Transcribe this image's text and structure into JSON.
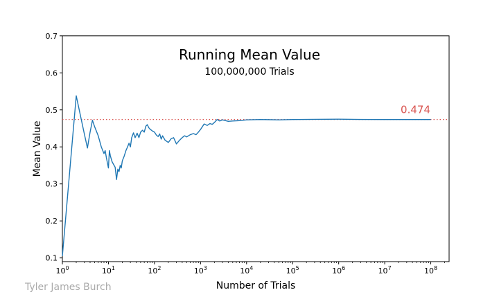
{
  "chart_data": {
    "type": "line",
    "title": "Running Mean Value",
    "subtitle": "100,000,000 Trials",
    "xlabel": "Number of Trials",
    "ylabel": "Mean Value",
    "x_scale": "log",
    "xlim": [
      1,
      250000000
    ],
    "ylim": [
      0.09,
      0.7
    ],
    "y_ticks": [
      {
        "value": 0.1,
        "label": "0.1"
      },
      {
        "value": 0.2,
        "label": "0.2"
      },
      {
        "value": 0.3,
        "label": "0.3"
      },
      {
        "value": 0.4,
        "label": "0.4"
      },
      {
        "value": 0.5,
        "label": "0.5"
      },
      {
        "value": 0.6,
        "label": "0.6"
      },
      {
        "value": 0.7,
        "label": "0.7"
      }
    ],
    "x_ticks": [
      {
        "value": 1,
        "base": "10",
        "exp": "0"
      },
      {
        "value": 10,
        "base": "10",
        "exp": "1"
      },
      {
        "value": 100,
        "base": "10",
        "exp": "2"
      },
      {
        "value": 1000,
        "base": "10",
        "exp": "3"
      },
      {
        "value": 10000,
        "base": "10",
        "exp": "4"
      },
      {
        "value": 100000,
        "base": "10",
        "exp": "5"
      },
      {
        "value": 1000000,
        "base": "10",
        "exp": "6"
      },
      {
        "value": 10000000,
        "base": "10",
        "exp": "7"
      },
      {
        "value": 100000000,
        "base": "10",
        "exp": "8"
      }
    ],
    "reference_line": {
      "value": 0.474,
      "label": "0.474",
      "color": "#d9534f",
      "style": "dotted"
    },
    "series": [
      {
        "color": "#1f77b4",
        "points": [
          [
            1,
            0.105
          ],
          [
            2,
            0.538
          ],
          [
            3,
            0.435
          ],
          [
            3.5,
            0.397
          ],
          [
            4,
            0.44
          ],
          [
            4.5,
            0.472
          ],
          [
            5,
            0.455
          ],
          [
            6,
            0.43
          ],
          [
            7,
            0.4
          ],
          [
            8,
            0.382
          ],
          [
            8.5,
            0.39
          ],
          [
            9,
            0.372
          ],
          [
            10,
            0.343
          ],
          [
            10.5,
            0.39
          ],
          [
            11,
            0.376
          ],
          [
            12,
            0.36
          ],
          [
            13,
            0.352
          ],
          [
            14,
            0.345
          ],
          [
            15,
            0.312
          ],
          [
            16,
            0.34
          ],
          [
            17,
            0.333
          ],
          [
            18,
            0.35
          ],
          [
            19,
            0.343
          ],
          [
            20,
            0.362
          ],
          [
            22,
            0.375
          ],
          [
            24,
            0.39
          ],
          [
            26,
            0.4
          ],
          [
            28,
            0.41
          ],
          [
            30,
            0.4
          ],
          [
            32,
            0.425
          ],
          [
            35,
            0.438
          ],
          [
            38,
            0.425
          ],
          [
            42,
            0.437
          ],
          [
            46,
            0.425
          ],
          [
            50,
            0.44
          ],
          [
            55,
            0.445
          ],
          [
            60,
            0.44
          ],
          [
            65,
            0.456
          ],
          [
            70,
            0.46
          ],
          [
            75,
            0.452
          ],
          [
            80,
            0.448
          ],
          [
            90,
            0.443
          ],
          [
            100,
            0.44
          ],
          [
            110,
            0.432
          ],
          [
            120,
            0.428
          ],
          [
            130,
            0.435
          ],
          [
            140,
            0.421
          ],
          [
            150,
            0.43
          ],
          [
            170,
            0.418
          ],
          [
            200,
            0.412
          ],
          [
            230,
            0.422
          ],
          [
            260,
            0.425
          ],
          [
            300,
            0.408
          ],
          [
            350,
            0.418
          ],
          [
            400,
            0.425
          ],
          [
            450,
            0.43
          ],
          [
            500,
            0.427
          ],
          [
            600,
            0.433
          ],
          [
            700,
            0.436
          ],
          [
            800,
            0.433
          ],
          [
            900,
            0.44
          ],
          [
            1000,
            0.447
          ],
          [
            1200,
            0.462
          ],
          [
            1400,
            0.458
          ],
          [
            1600,
            0.463
          ],
          [
            1800,
            0.461
          ],
          [
            2000,
            0.466
          ],
          [
            2300,
            0.474
          ],
          [
            2600,
            0.47
          ],
          [
            3000,
            0.473
          ],
          [
            4000,
            0.469
          ],
          [
            5000,
            0.47
          ],
          [
            7000,
            0.471
          ],
          [
            10000,
            0.473
          ],
          [
            20000,
            0.474
          ],
          [
            50000,
            0.473
          ],
          [
            100000,
            0.474
          ],
          [
            300000,
            0.4745
          ],
          [
            1000000,
            0.4748
          ],
          [
            3000000,
            0.4741
          ],
          [
            10000000,
            0.474
          ],
          [
            30000000,
            0.474
          ],
          [
            100000000,
            0.474
          ]
        ]
      }
    ]
  },
  "credit": {
    "text": "Tyler James Burch",
    "color": "#aaaaaa"
  }
}
